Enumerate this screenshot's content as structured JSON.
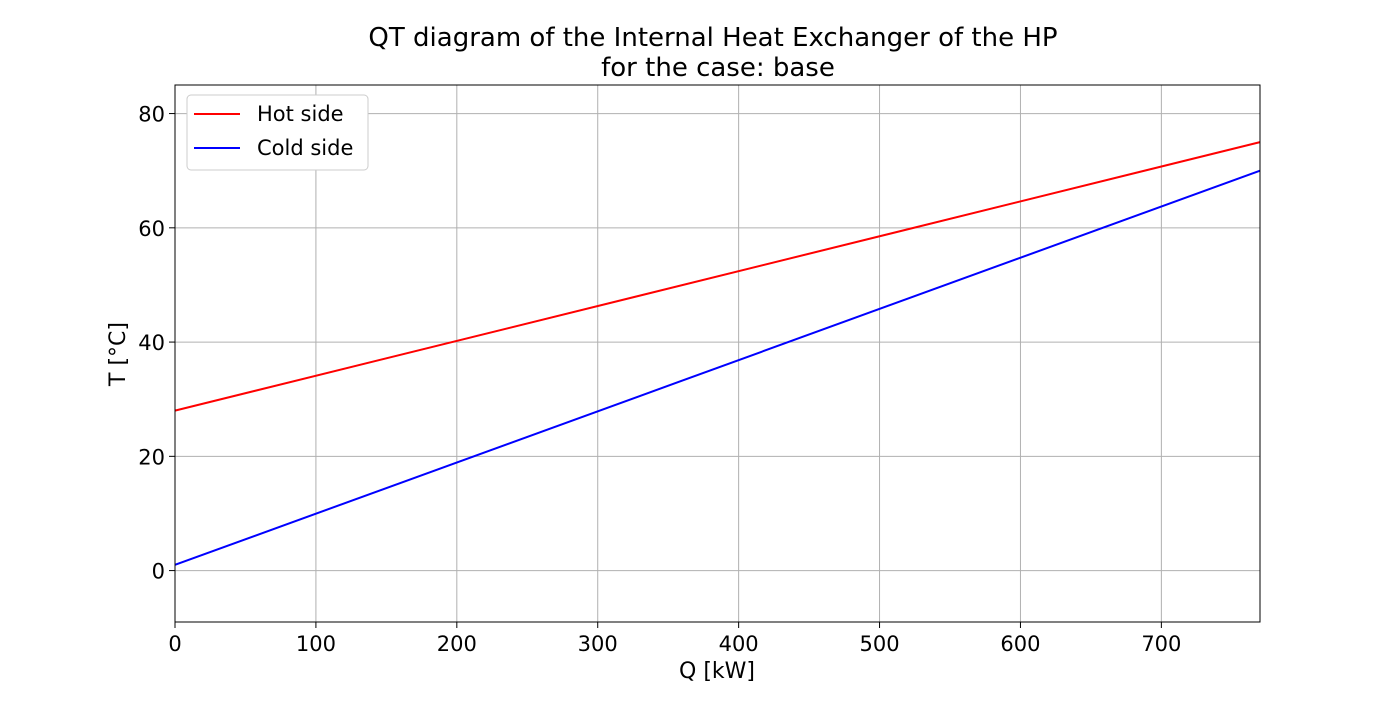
{
  "chart_data": {
    "type": "line",
    "title": "QT diagram of the Internal Heat Exchanger of the HP",
    "subtitle": "for the case: base",
    "xlabel": "Q [kW]",
    "ylabel": "T [°C]",
    "xlim": [
      0,
      770
    ],
    "ylim": [
      -9,
      85
    ],
    "xticks": [
      0,
      100,
      200,
      300,
      400,
      500,
      600,
      700
    ],
    "yticks": [
      0,
      20,
      40,
      60,
      80
    ],
    "grid": true,
    "legend_position": "top-left",
    "series": [
      {
        "name": "Hot side",
        "color": "#ff0000",
        "x": [
          0,
          770
        ],
        "y": [
          28,
          75
        ]
      },
      {
        "name": "Cold side",
        "color": "#0000ff",
        "x": [
          0,
          770
        ],
        "y": [
          1,
          70
        ]
      }
    ]
  }
}
